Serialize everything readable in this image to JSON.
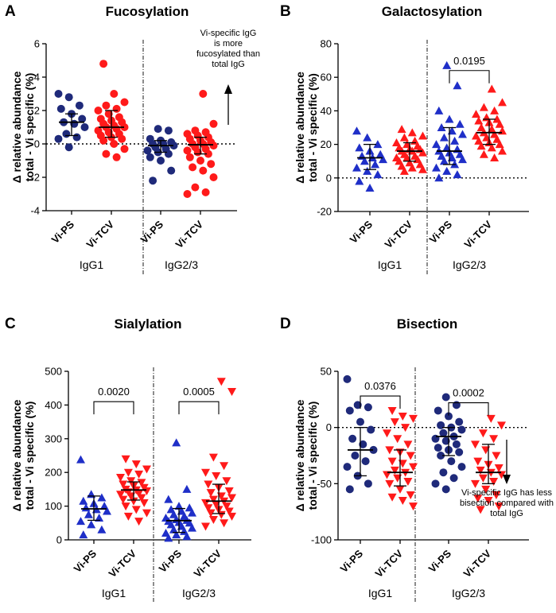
{
  "chart_data": [
    {
      "type": "scatter",
      "letter": "A",
      "title": "Fucosylation",
      "ylabel_lines": [
        "Δ relative abundance",
        "total - Vi specific (%)"
      ],
      "ylim": [
        -4,
        6
      ],
      "yticks": [
        -4,
        -2,
        0,
        2,
        4,
        6
      ],
      "zero_line": true,
      "groups": [
        "IgG1",
        "IgG2/3"
      ],
      "categories": [
        "Vi-PS",
        "Vi-TCV",
        "Vi-PS",
        "Vi-TCV"
      ],
      "colors": [
        "#1f2a7a",
        "#ff1a1a",
        "#1f2a7a",
        "#ff1a1a"
      ],
      "marker": "circle",
      "series": [
        {
          "name": "IgG1 Vi-PS",
          "values": [
            3.0,
            2.8,
            2.3,
            2.1,
            1.8,
            1.5,
            1.3,
            1.2,
            1.0,
            0.6,
            0.4,
            0.3,
            -0.2
          ]
        },
        {
          "name": "IgG1 Vi-TCV",
          "values": [
            4.8,
            3.0,
            2.5,
            2.3,
            2.1,
            2.0,
            1.8,
            1.6,
            1.5,
            1.4,
            1.3,
            1.2,
            1.1,
            1.0,
            1.0,
            0.9,
            0.8,
            0.7,
            0.6,
            0.5,
            0.4,
            0.3,
            0.2,
            0.0,
            -0.3,
            -0.6,
            -0.8
          ]
        },
        {
          "name": "IgG2/3 Vi-PS",
          "values": [
            0.9,
            0.8,
            0.3,
            0.2,
            0.1,
            0.0,
            0.0,
            -0.1,
            -0.2,
            -0.3,
            -0.4,
            -0.5,
            -0.6,
            -0.8,
            -1.0,
            -1.6,
            -2.2
          ]
        },
        {
          "name": "IgG2/3 Vi-TCV",
          "values": [
            3.0,
            1.2,
            0.8,
            0.7,
            0.6,
            0.5,
            0.4,
            0.3,
            0.2,
            0.1,
            0.0,
            0.0,
            -0.1,
            -0.2,
            -0.3,
            -0.4,
            -0.5,
            -0.6,
            -0.8,
            -1.0,
            -1.2,
            -1.4,
            -1.6,
            -2.0,
            -2.6,
            -2.9,
            -3.0
          ]
        }
      ],
      "medians": [
        1.3,
        1.0,
        -0.1,
        -0.05
      ],
      "iqr": [
        [
          0.5,
          1.8
        ],
        [
          0.4,
          2.0
        ],
        [
          -0.5,
          0.2
        ],
        [
          -0.6,
          0.4
        ]
      ],
      "comparisons": [],
      "annotation": "Vi-specific IgG\nis more\nfucosylated than\ntotal IgG",
      "arrow_direction": "up"
    },
    {
      "type": "scatter",
      "letter": "B",
      "title": "Galactosylation",
      "ylabel_lines": [
        "Δ relative abundance",
        "total - Vi specific (%)"
      ],
      "ylim": [
        -20,
        80
      ],
      "yticks": [
        -20,
        0,
        20,
        40,
        60,
        80
      ],
      "zero_line": true,
      "groups": [
        "IgG1",
        "IgG2/3"
      ],
      "categories": [
        "Vi-PS",
        "Vi-TCV",
        "Vi-PS",
        "Vi-TCV"
      ],
      "colors": [
        "#1f2fc8",
        "#ff1a1a",
        "#1f2fc8",
        "#ff1a1a"
      ],
      "marker": "triangle-up",
      "series": [
        {
          "name": "IgG1 Vi-PS",
          "values": [
            28,
            24,
            20,
            18,
            16,
            14,
            13,
            12,
            11,
            10,
            8,
            6,
            4,
            2,
            -2,
            -6
          ]
        },
        {
          "name": "IgG1 Vi-TCV",
          "values": [
            29,
            27,
            25,
            24,
            22,
            21,
            20,
            19,
            18,
            17,
            17,
            16,
            16,
            15,
            14,
            13,
            12,
            12,
            11,
            10,
            9,
            8,
            7,
            6,
            5,
            4
          ]
        },
        {
          "name": "IgG2/3 Vi-PS",
          "values": [
            67,
            55,
            40,
            35,
            32,
            30,
            28,
            26,
            24,
            22,
            20,
            18,
            17,
            16,
            15,
            14,
            13,
            12,
            11,
            10,
            8,
            6,
            4,
            2,
            0
          ]
        },
        {
          "name": "IgG2/3 Vi-TCV",
          "values": [
            53,
            45,
            42,
            40,
            38,
            36,
            35,
            34,
            33,
            32,
            30,
            29,
            28,
            27,
            26,
            25,
            24,
            23,
            22,
            21,
            20,
            19,
            18,
            16,
            14,
            12
          ]
        }
      ],
      "medians": [
        12,
        16,
        16,
        27
      ],
      "iqr": [
        [
          5,
          20
        ],
        [
          10,
          21
        ],
        [
          8,
          30
        ],
        [
          20,
          35
        ]
      ],
      "comparisons": [
        {
          "from": 2,
          "to": 3,
          "p": "0.0195",
          "level": 64
        }
      ],
      "annotation": null
    },
    {
      "type": "scatter",
      "letter": "C",
      "title": "Sialylation",
      "ylabel_lines": [
        "Δ relative abundance",
        "total - Vi specific (%)"
      ],
      "ylim": [
        0,
        500
      ],
      "yticks": [
        0,
        100,
        200,
        300,
        400,
        500
      ],
      "zero_line": false,
      "groups": [
        "IgG1",
        "IgG2/3"
      ],
      "categories": [
        "Vi-PS",
        "Vi-TCV",
        "Vi-PS",
        "Vi-TCV"
      ],
      "colors": [
        "#1f2fc8",
        "#ff1a1a",
        "#1f2fc8",
        "#ff1a1a"
      ],
      "marker": "triangle",
      "series": [
        {
          "name": "IgG1 Vi-PS",
          "values": [
            238,
            135,
            125,
            115,
            108,
            100,
            95,
            90,
            85,
            75,
            65,
            55,
            45,
            30,
            15
          ]
        },
        {
          "name": "IgG1 Vi-TCV",
          "values": [
            240,
            225,
            210,
            200,
            195,
            185,
            175,
            170,
            165,
            160,
            155,
            150,
            148,
            145,
            142,
            138,
            135,
            130,
            125,
            120,
            115,
            110,
            100,
            90,
            80,
            70,
            55
          ]
        },
        {
          "name": "IgG2/3 Vi-PS",
          "values": [
            288,
            150,
            120,
            100,
            95,
            90,
            85,
            80,
            75,
            70,
            65,
            60,
            58,
            55,
            52,
            50,
            45,
            40,
            35,
            30,
            25,
            20,
            15,
            10,
            5
          ]
        },
        {
          "name": "IgG2/3 Vi-TCV",
          "values": [
            470,
            440,
            245,
            220,
            200,
            190,
            175,
            165,
            155,
            145,
            140,
            130,
            125,
            120,
            115,
            110,
            105,
            100,
            95,
            90,
            85,
            80,
            75,
            70,
            60,
            50,
            40
          ]
        }
      ],
      "medians": [
        92,
        148,
        57,
        115
      ],
      "iqr": [
        [
          58,
          130
        ],
        [
          118,
          172
        ],
        [
          22,
          93
        ],
        [
          78,
          165
        ]
      ],
      "comparisons": [
        {
          "from": 0,
          "to": 1,
          "p": "0.0020",
          "level": 410
        },
        {
          "from": 2,
          "to": 3,
          "p": "0.0005",
          "level": 410
        }
      ],
      "annotation": null
    },
    {
      "type": "scatter",
      "letter": "D",
      "title": "Bisection",
      "ylabel_lines": [
        "Δ relative abundance",
        "total - Vi specific (%)"
      ],
      "ylim": [
        -100,
        50
      ],
      "yticks": [
        -100,
        -50,
        0,
        50
      ],
      "zero_line": true,
      "groups": [
        "IgG1",
        "IgG2/3"
      ],
      "categories": [
        "Vi-PS",
        "Vi-TCV",
        "Vi-PS",
        "Vi-TCV"
      ],
      "colors": [
        "#1f2a7a",
        "#ff1a1a",
        "#1f2a7a",
        "#ff1a1a"
      ],
      "marker": "mixed",
      "series": [
        {
          "name": "IgG1 Vi-PS",
          "values": [
            43,
            20,
            18,
            15,
            5,
            -2,
            -10,
            -15,
            -20,
            -25,
            -30,
            -35,
            -43,
            -50,
            -55
          ]
        },
        {
          "name": "IgG1 Vi-TCV",
          "values": [
            15,
            10,
            8,
            5,
            0,
            -5,
            -10,
            -15,
            -20,
            -22,
            -25,
            -30,
            -32,
            -35,
            -38,
            -40,
            -42,
            -45,
            -48,
            -50,
            -55,
            -60,
            -62,
            -65,
            -70
          ]
        },
        {
          "name": "IgG2/3 Vi-PS",
          "values": [
            27,
            20,
            15,
            10,
            5,
            2,
            0,
            -2,
            -5,
            -8,
            -10,
            -12,
            -15,
            -18,
            -20,
            -22,
            -25,
            -30,
            -35,
            -40,
            -45,
            -50,
            -55
          ]
        },
        {
          "name": "IgG2/3 Vi-TCV",
          "values": [
            8,
            2,
            -5,
            -10,
            -15,
            -20,
            -25,
            -30,
            -33,
            -36,
            -38,
            -40,
            -42,
            -45,
            -48,
            -50,
            -55,
            -60,
            -63,
            -65,
            -70,
            -73
          ]
        }
      ],
      "medians": [
        -20,
        -40,
        -8,
        -40
      ],
      "iqr": [
        [
          -43,
          0
        ],
        [
          -52,
          -20
        ],
        [
          -25,
          0
        ],
        [
          -50,
          -15
        ]
      ],
      "comparisons": [
        {
          "from": 0,
          "to": 1,
          "p": "0.0376",
          "level": 28
        },
        {
          "from": 2,
          "to": 3,
          "p": "0.0002",
          "level": 22
        }
      ],
      "annotation": "Vi-specific IgG has less\nbisection compared with\ntotal IgG",
      "arrow_direction": "down"
    }
  ]
}
